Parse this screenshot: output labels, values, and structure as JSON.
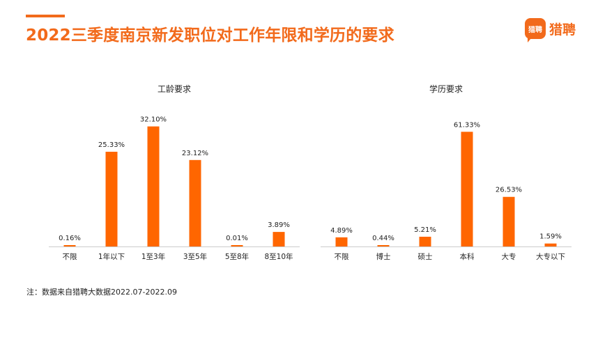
{
  "header": {
    "title": "2022三季度南京新发职位对工作年限和学历的要求"
  },
  "logo": {
    "mark_text": "猎聘",
    "text": "猎聘"
  },
  "note": "注：数据来自猎聘大数据2022.07-2022.09",
  "colors": {
    "accent": "#f26a1b",
    "bar": "#ff6600",
    "axis": "#cccccc"
  },
  "chart_data": [
    {
      "type": "bar",
      "title": "工龄要求",
      "categories": [
        "不限",
        "1年以下",
        "1至3年",
        "3至5年",
        "5至8年",
        "8至10年"
      ],
      "values": [
        0.16,
        25.33,
        32.1,
        23.12,
        0.01,
        3.89
      ],
      "value_labels": [
        "0.16%",
        "25.33%",
        "32.10%",
        "23.12%",
        "0.01%",
        "3.89%"
      ],
      "ylim": [
        0,
        35
      ],
      "grid": false,
      "legend": "none"
    },
    {
      "type": "bar",
      "title": "学历要求",
      "categories": [
        "不限",
        "博士",
        "硕士",
        "本科",
        "大专",
        "大专以下"
      ],
      "values": [
        4.89,
        0.44,
        5.21,
        61.33,
        26.53,
        1.59
      ],
      "value_labels": [
        "4.89%",
        "0.44%",
        "5.21%",
        "61.33%",
        "26.53%",
        "1.59%"
      ],
      "ylim": [
        0,
        70
      ],
      "grid": false,
      "legend": "none"
    }
  ]
}
